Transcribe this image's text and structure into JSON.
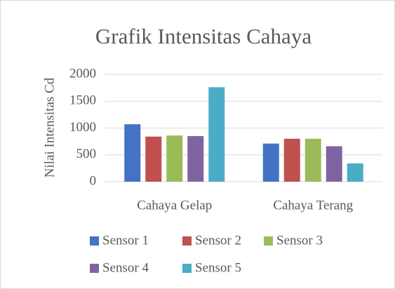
{
  "chart_data": {
    "type": "bar",
    "title": "Grafik Intensitas Cahaya",
    "y_label": "Nilai Intensitas Cd",
    "categories": [
      "Cahaya Gelap",
      "Cahaya Terang"
    ],
    "series": [
      {
        "name": "Sensor 1",
        "color": "#4472c4",
        "values": [
          1070,
          710
        ]
      },
      {
        "name": "Sensor 2",
        "color": "#c0504d",
        "values": [
          840,
          800
        ]
      },
      {
        "name": "Sensor 3",
        "color": "#9bbb59",
        "values": [
          860,
          800
        ]
      },
      {
        "name": "Sensor 4",
        "color": "#8064a2",
        "values": [
          850,
          660
        ]
      },
      {
        "name": "Sensor 5",
        "color": "#4bacc6",
        "values": [
          1760,
          340
        ]
      }
    ],
    "ylim": [
      0,
      2000
    ],
    "yticks": [
      0,
      500,
      1000,
      1500,
      2000
    ],
    "grid": true,
    "legend": "bottom"
  }
}
